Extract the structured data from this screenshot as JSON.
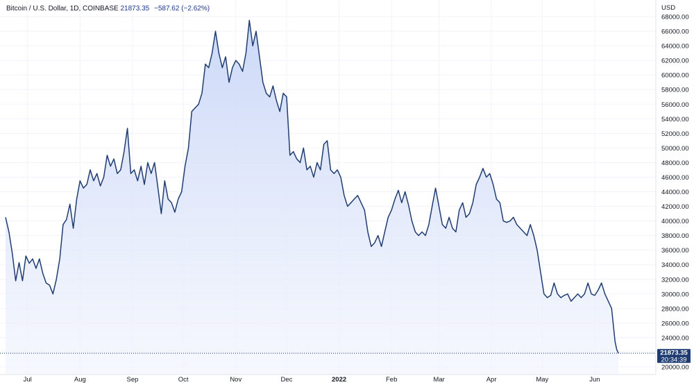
{
  "legend": {
    "title": "Bitcoin / U.S. Dollar, 1D, COINBASE",
    "last": "21873.35",
    "change": "−587.62 (−2.62%)"
  },
  "price_label": {
    "price": "21873.35",
    "countdown": "20:34:39"
  },
  "colors": {
    "line": "#1f3c72",
    "fill_top": "#c9d6f7",
    "fill_bottom": "#f2f5fd",
    "label_bg": "#1f3c72"
  },
  "chart_data": {
    "type": "area",
    "title": "Bitcoin / U.S. Dollar, 1D, COINBASE",
    "ylabel": "USD",
    "ylim": [
      19000,
      69500
    ],
    "grid": true,
    "y_ticks": [
      20000,
      22000,
      24000,
      26000,
      28000,
      30000,
      32000,
      34000,
      36000,
      38000,
      40000,
      42000,
      44000,
      46000,
      48000,
      50000,
      52000,
      54000,
      56000,
      58000,
      60000,
      62000,
      64000,
      66000,
      68000
    ],
    "x_tick_labels": [
      {
        "label": "Jul",
        "day": 5
      },
      {
        "label": "Aug",
        "day": 36
      },
      {
        "label": "Sep",
        "day": 67
      },
      {
        "label": "Oct",
        "day": 97
      },
      {
        "label": "Nov",
        "day": 128
      },
      {
        "label": "Dec",
        "day": 158
      },
      {
        "label": "2022",
        "day": 189,
        "bold": true
      },
      {
        "label": "Feb",
        "day": 220
      },
      {
        "label": "Mar",
        "day": 248
      },
      {
        "label": "Apr",
        "day": 279
      },
      {
        "label": "May",
        "day": 309
      },
      {
        "label": "Jun",
        "day": 340
      }
    ],
    "x_range_days": [
      -8,
      372
    ],
    "series": [
      {
        "points": [
          [
            -8,
            40500
          ],
          [
            -6,
            38500
          ],
          [
            -4,
            35500
          ],
          [
            -2,
            31800
          ],
          [
            0,
            34300
          ],
          [
            2,
            31800
          ],
          [
            4,
            35200
          ],
          [
            6,
            34200
          ],
          [
            8,
            34800
          ],
          [
            10,
            33500
          ],
          [
            12,
            34800
          ],
          [
            14,
            32800
          ],
          [
            16,
            31500
          ],
          [
            18,
            31200
          ],
          [
            20,
            30000
          ],
          [
            22,
            32000
          ],
          [
            24,
            34800
          ],
          [
            26,
            39500
          ],
          [
            28,
            40200
          ],
          [
            30,
            42300
          ],
          [
            32,
            39000
          ],
          [
            34,
            43000
          ],
          [
            36,
            45500
          ],
          [
            38,
            44500
          ],
          [
            40,
            45000
          ],
          [
            42,
            47000
          ],
          [
            44,
            45500
          ],
          [
            46,
            46500
          ],
          [
            48,
            44800
          ],
          [
            50,
            46000
          ],
          [
            52,
            49000
          ],
          [
            54,
            47500
          ],
          [
            56,
            48500
          ],
          [
            58,
            46500
          ],
          [
            60,
            47000
          ],
          [
            62,
            49500
          ],
          [
            64,
            52700
          ],
          [
            66,
            46500
          ],
          [
            68,
            47000
          ],
          [
            70,
            45500
          ],
          [
            72,
            47500
          ],
          [
            74,
            45000
          ],
          [
            76,
            48000
          ],
          [
            78,
            46500
          ],
          [
            80,
            48000
          ],
          [
            82,
            44500
          ],
          [
            84,
            41000
          ],
          [
            86,
            45500
          ],
          [
            88,
            43000
          ],
          [
            90,
            42500
          ],
          [
            92,
            41200
          ],
          [
            94,
            43000
          ],
          [
            96,
            44000
          ],
          [
            98,
            47500
          ],
          [
            100,
            50000
          ],
          [
            102,
            55000
          ],
          [
            104,
            55500
          ],
          [
            106,
            56000
          ],
          [
            108,
            57500
          ],
          [
            110,
            61500
          ],
          [
            112,
            61000
          ],
          [
            114,
            63000
          ],
          [
            116,
            66000
          ],
          [
            118,
            63000
          ],
          [
            120,
            61000
          ],
          [
            122,
            62500
          ],
          [
            124,
            59000
          ],
          [
            126,
            61000
          ],
          [
            128,
            62000
          ],
          [
            130,
            61500
          ],
          [
            132,
            60500
          ],
          [
            134,
            63000
          ],
          [
            136,
            67500
          ],
          [
            138,
            64000
          ],
          [
            140,
            66000
          ],
          [
            142,
            62500
          ],
          [
            144,
            59000
          ],
          [
            146,
            57500
          ],
          [
            148,
            57000
          ],
          [
            150,
            58500
          ],
          [
            152,
            56500
          ],
          [
            154,
            55000
          ],
          [
            156,
            57500
          ],
          [
            158,
            57000
          ],
          [
            160,
            49000
          ],
          [
            162,
            49500
          ],
          [
            164,
            48500
          ],
          [
            166,
            48000
          ],
          [
            168,
            50000
          ],
          [
            170,
            47000
          ],
          [
            172,
            47500
          ],
          [
            174,
            46000
          ],
          [
            176,
            48000
          ],
          [
            178,
            47000
          ],
          [
            180,
            50500
          ],
          [
            182,
            51000
          ],
          [
            184,
            47000
          ],
          [
            186,
            46500
          ],
          [
            188,
            47000
          ],
          [
            190,
            46000
          ],
          [
            192,
            43500
          ],
          [
            194,
            42000
          ],
          [
            196,
            42500
          ],
          [
            198,
            43000
          ],
          [
            200,
            43500
          ],
          [
            202,
            42500
          ],
          [
            204,
            41500
          ],
          [
            206,
            38500
          ],
          [
            208,
            36500
          ],
          [
            210,
            37000
          ],
          [
            212,
            38000
          ],
          [
            214,
            36500
          ],
          [
            216,
            38500
          ],
          [
            218,
            40500
          ],
          [
            220,
            41500
          ],
          [
            222,
            43000
          ],
          [
            224,
            44200
          ],
          [
            226,
            42500
          ],
          [
            228,
            44000
          ],
          [
            230,
            42200
          ],
          [
            232,
            40000
          ],
          [
            234,
            38500
          ],
          [
            236,
            38000
          ],
          [
            238,
            38500
          ],
          [
            240,
            38000
          ],
          [
            242,
            39500
          ],
          [
            244,
            42000
          ],
          [
            246,
            44500
          ],
          [
            248,
            42000
          ],
          [
            250,
            39500
          ],
          [
            252,
            39000
          ],
          [
            254,
            40500
          ],
          [
            256,
            39000
          ],
          [
            258,
            38500
          ],
          [
            260,
            41500
          ],
          [
            262,
            42500
          ],
          [
            264,
            40500
          ],
          [
            266,
            41000
          ],
          [
            268,
            42500
          ],
          [
            270,
            45000
          ],
          [
            272,
            46000
          ],
          [
            274,
            47200
          ],
          [
            276,
            46000
          ],
          [
            278,
            46500
          ],
          [
            280,
            45000
          ],
          [
            282,
            43000
          ],
          [
            284,
            42500
          ],
          [
            286,
            40000
          ],
          [
            288,
            39800
          ],
          [
            290,
            40000
          ],
          [
            292,
            40500
          ],
          [
            294,
            39500
          ],
          [
            296,
            39000
          ],
          [
            298,
            38500
          ],
          [
            300,
            38000
          ],
          [
            302,
            39500
          ],
          [
            304,
            38000
          ],
          [
            306,
            36000
          ],
          [
            308,
            33000
          ],
          [
            310,
            30000
          ],
          [
            312,
            29500
          ],
          [
            314,
            29800
          ],
          [
            316,
            31500
          ],
          [
            318,
            30000
          ],
          [
            320,
            29500
          ],
          [
            322,
            29800
          ],
          [
            324,
            30000
          ],
          [
            326,
            29000
          ],
          [
            328,
            29500
          ],
          [
            330,
            30000
          ],
          [
            332,
            29500
          ],
          [
            334,
            30000
          ],
          [
            336,
            31500
          ],
          [
            338,
            30000
          ],
          [
            340,
            29800
          ],
          [
            342,
            30500
          ],
          [
            344,
            31500
          ],
          [
            346,
            30000
          ],
          [
            348,
            29000
          ],
          [
            350,
            28000
          ],
          [
            352,
            23500
          ],
          [
            353,
            22400
          ],
          [
            354,
            21873
          ]
        ]
      }
    ]
  }
}
